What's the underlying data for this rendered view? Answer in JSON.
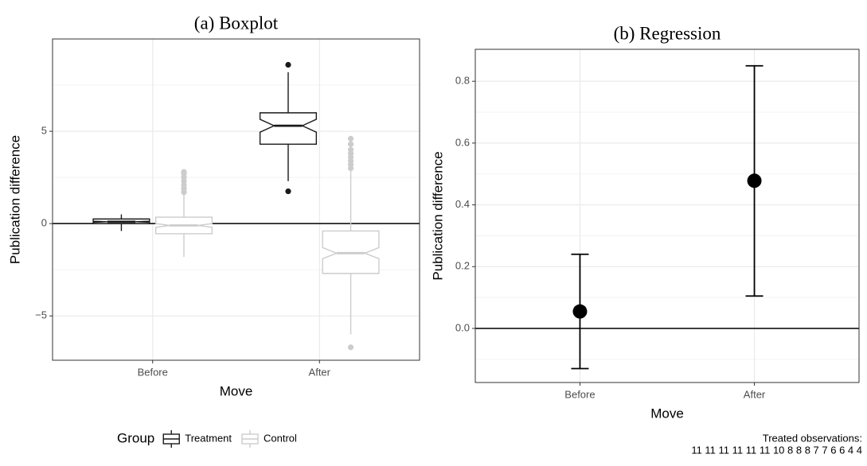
{
  "chart_data": [
    {
      "type": "box",
      "title": "(a) Boxplot",
      "x_label": "Move",
      "y_label": "Publication difference",
      "categories": [
        "Before",
        "After"
      ],
      "ylim": [
        -7.4,
        10
      ],
      "yticks": [
        {
          "value": -5,
          "label": "−5"
        },
        0,
        5
      ],
      "y_minor_ticks": [
        -2.5,
        2.5,
        7.5
      ],
      "grid": true,
      "hline": 0,
      "notch": true,
      "legend_title": "Group",
      "legend_position": "bottom",
      "series": [
        {
          "name": "Treatment",
          "color": "#1a1a1a",
          "boxes": [
            {
              "whislo": -0.4,
              "q1": 0.0,
              "med": 0.1,
              "q3": 0.25,
              "whishi": 0.5,
              "notchlo": 0.07,
              "notchhi": 0.13,
              "outliers": []
            },
            {
              "whislo": 2.3,
              "q1": 4.3,
              "med": 5.3,
              "q3": 6.0,
              "whishi": 8.2,
              "notchlo": 4.95,
              "notchhi": 5.65,
              "outliers": [
                1.75,
                8.6
              ]
            }
          ]
        },
        {
          "name": "Control",
          "color": "#cccccc",
          "boxes": [
            {
              "whislo": -1.8,
              "q1": -0.55,
              "med": -0.1,
              "q3": 0.35,
              "whishi": 1.6,
              "notchlo": -0.2,
              "notchhi": 0,
              "outliers": [
                1.7,
                1.9,
                2.1,
                2.3,
                2.5,
                2.7,
                2.8
              ]
            },
            {
              "whislo": -6.0,
              "q1": -2.7,
              "med": -1.6,
              "q3": -0.4,
              "whishi": 2.9,
              "notchlo": -1.9,
              "notchhi": -1.3,
              "outliers": [
                -6.7,
                3.0,
                3.2,
                3.4,
                3.6,
                3.8,
                4.0,
                4.3,
                4.6
              ]
            }
          ]
        }
      ]
    },
    {
      "type": "pointrange",
      "title": "(b) Regression",
      "x_label": "Move",
      "y_label": "Publication difference",
      "categories": [
        "Before",
        "After"
      ],
      "values": [
        0.055,
        0.478
      ],
      "lower": [
        -0.13,
        0.105
      ],
      "upper": [
        0.24,
        0.85
      ],
      "color": "#000000",
      "ylim": [
        -0.175,
        0.9035
      ],
      "yticks": [
        {
          "value": 0,
          "label": "0.0"
        },
        0.2,
        0.4,
        0.6,
        0.8
      ],
      "y_minor_ticks": [
        -0.1,
        0.1,
        0.3,
        0.5,
        0.7
      ],
      "grid": true,
      "hline": 0,
      "caption": [
        "Treated observations:",
        "11 11 11 11 11 11 10 8 8 8 7 7 6 6 4 4"
      ]
    }
  ]
}
